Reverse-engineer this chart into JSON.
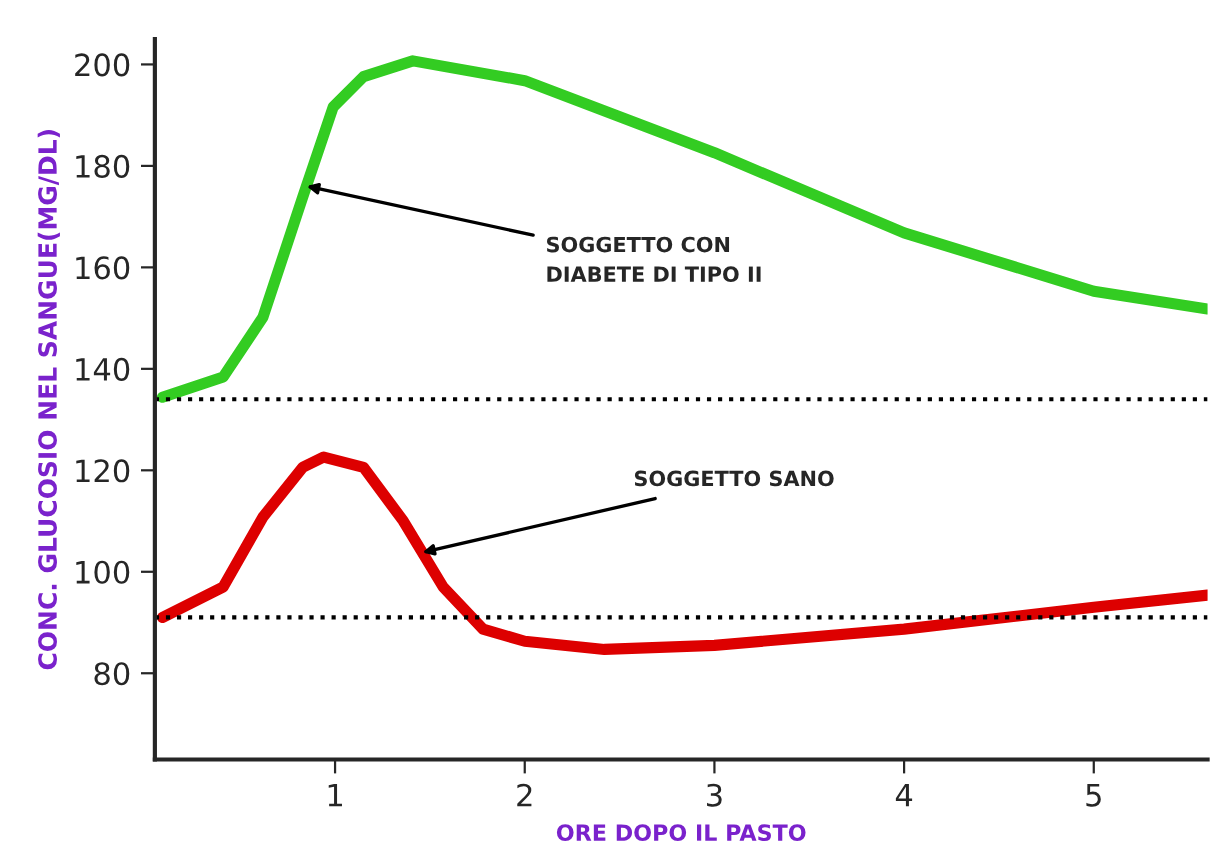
{
  "chart_data": {
    "type": "line",
    "xlabel": "ORE DOPO IL PASTO",
    "ylabel": "CONC. GLUCOSIO NEL SANGUE(MG/DL)",
    "xlim": [
      0.05,
      5.6
    ],
    "xticks": [
      1,
      2,
      3,
      4,
      5
    ],
    "ylim": [
      63,
      205
    ],
    "yticks": [
      80,
      100,
      120,
      140,
      160,
      180,
      200
    ],
    "grid": false,
    "legend": false,
    "series": [
      {
        "color": "#33cc22",
        "x": [
          0.09,
          0.41,
          0.62,
          0.83,
          0.99,
          1.15,
          1.41,
          2,
          3,
          4,
          5,
          5.6
        ],
        "values": [
          134.4,
          138.4,
          150.2,
          173.9,
          191.6,
          197.6,
          200.7,
          196.8,
          182.6,
          166.8,
          155.3,
          151.8
        ]
      },
      {
        "color": "#dd0000",
        "x": [
          0.09,
          0.41,
          0.62,
          0.83,
          0.94,
          1.15,
          1.36,
          1.57,
          1.78,
          2,
          2.42,
          3,
          4,
          5,
          5.6
        ],
        "values": [
          91,
          97,
          110.8,
          120.6,
          122.6,
          120.6,
          110,
          97,
          88.7,
          86.3,
          84.7,
          85.5,
          88.7,
          93,
          95.4
        ]
      }
    ],
    "ref_lines": [
      {
        "axis": "y",
        "value": 134,
        "line_style": "dotted",
        "color": "#000000"
      },
      {
        "axis": "y",
        "value": 91,
        "line_style": "dotted",
        "color": "#000000"
      }
    ],
    "annotations": [
      {
        "text": "SOGGETTO CON\nDIABETE DI TIPO II",
        "x": 0.85,
        "y": 176
      },
      {
        "text": "SOGGETTO SANO",
        "x": 1.46,
        "y": 103.8
      }
    ]
  }
}
